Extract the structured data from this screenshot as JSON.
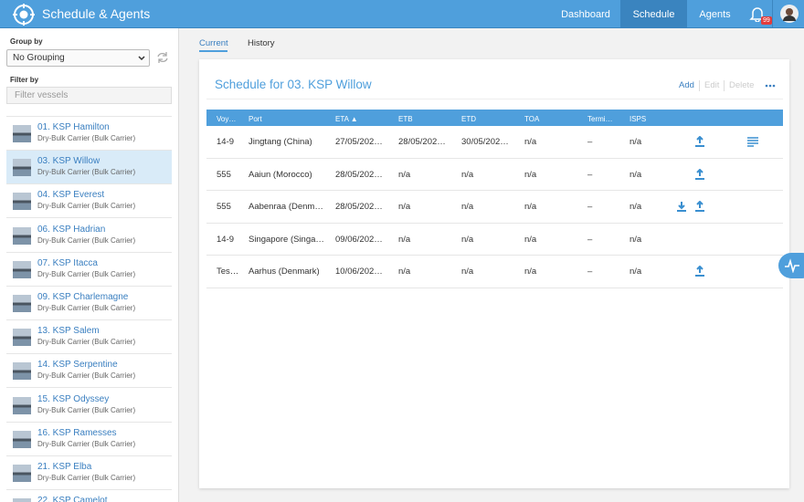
{
  "header": {
    "title": "Schedule & Agents",
    "nav": [
      "Dashboard",
      "Schedule",
      "Agents"
    ],
    "notification_count": 99
  },
  "sidebar": {
    "group_by_label": "Group by",
    "group_by_value": "No Grouping",
    "filter_label": "Filter by",
    "filter_placeholder": "Filter vessels",
    "vessels": [
      {
        "name": "01. KSP Hamilton",
        "type": "Dry-Bulk Carrier (Bulk Carrier)"
      },
      {
        "name": "03. KSP Willow",
        "type": "Dry-Bulk Carrier (Bulk Carrier)"
      },
      {
        "name": "04. KSP Everest",
        "type": "Dry-Bulk Carrier (Bulk Carrier)"
      },
      {
        "name": "06. KSP Hadrian",
        "type": "Dry-Bulk Carrier (Bulk Carrier)"
      },
      {
        "name": "07. KSP Itacca",
        "type": "Dry-Bulk Carrier (Bulk Carrier)"
      },
      {
        "name": "09. KSP Charlemagne",
        "type": "Dry-Bulk Carrier (Bulk Carrier)"
      },
      {
        "name": "13. KSP Salem",
        "type": "Dry-Bulk Carrier (Bulk Carrier)"
      },
      {
        "name": "14. KSP Serpentine",
        "type": "Dry-Bulk Carrier (Bulk Carrier)"
      },
      {
        "name": "15. KSP Odyssey",
        "type": "Dry-Bulk Carrier (Bulk Carrier)"
      },
      {
        "name": "16. KSP Ramesses",
        "type": "Dry-Bulk Carrier (Bulk Carrier)"
      },
      {
        "name": "21. KSP Elba",
        "type": "Dry-Bulk Carrier (Bulk Carrier)"
      },
      {
        "name": "22. KSP Camelot"
      }
    ]
  },
  "main": {
    "tabs": [
      "Current",
      "History"
    ],
    "card_title": "Schedule for 03. KSP Willow",
    "actions": [
      "Add",
      "Edit",
      "Delete"
    ],
    "table": {
      "columns": [
        "Voy…",
        "Port",
        "ETA ▲",
        "ETB",
        "ETD",
        "TOA",
        "Termi…",
        "ISPS"
      ],
      "rows": [
        [
          "14-9",
          "Jingtang (China)",
          "27/05/202…",
          "28/05/202…",
          "30/05/202…",
          "n/a",
          "–",
          "n/a"
        ],
        [
          "555",
          "Aaiun (Morocco)",
          "28/05/202…",
          "n/a",
          "n/a",
          "n/a",
          "–",
          "n/a"
        ],
        [
          "555",
          "Aabenraa (Denm…",
          "28/05/202…",
          "n/a",
          "n/a",
          "n/a",
          "–",
          "n/a"
        ],
        [
          "14-9",
          "Singapore (Singa…",
          "09/06/202…",
          "n/a",
          "n/a",
          "n/a",
          "–",
          "n/a"
        ],
        [
          "Tes…",
          "Aarhus (Denmark)",
          "10/06/202…",
          "n/a",
          "n/a",
          "n/a",
          "–",
          "n/a"
        ]
      ]
    }
  }
}
